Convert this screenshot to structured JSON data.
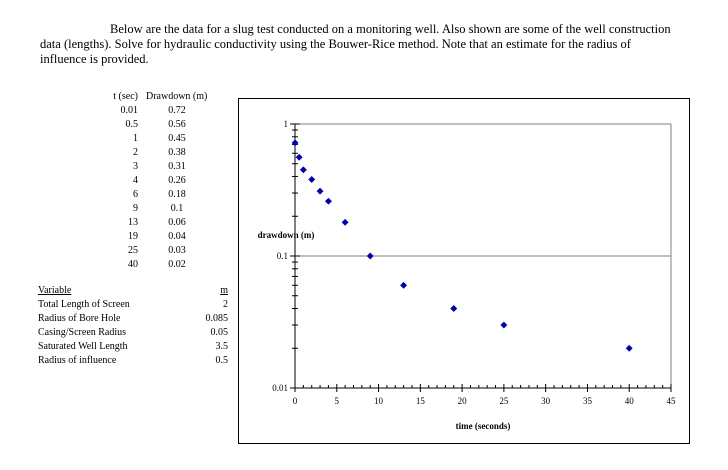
{
  "intro_text": "Below are the data for a slug test conducted on a monitoring well. Also shown are some of the well construction data (lengths). Solve for hydraulic conductivity using the Bouwer-Rice method. Note that an estimate for the radius of influence is provided.",
  "data_table": {
    "headers": {
      "time": "t (sec)",
      "drawdown": "Drawdown (m)"
    },
    "rows": [
      {
        "t": "0.01",
        "d": "0.72"
      },
      {
        "t": "0.5",
        "d": "0.56"
      },
      {
        "t": "1",
        "d": "0.45"
      },
      {
        "t": "2",
        "d": "0.38"
      },
      {
        "t": "3",
        "d": "0.31"
      },
      {
        "t": "4",
        "d": "0.26"
      },
      {
        "t": "6",
        "d": "0.18"
      },
      {
        "t": "9",
        "d": "0.1"
      },
      {
        "t": "13",
        "d": "0.06"
      },
      {
        "t": "19",
        "d": "0.04"
      },
      {
        "t": "25",
        "d": "0.03"
      },
      {
        "t": "40",
        "d": "0.02"
      }
    ]
  },
  "variables": {
    "header_label": "Variable",
    "header_unit": "m",
    "rows": [
      {
        "name": "Total Length of Screen",
        "value": "2"
      },
      {
        "name": "Radius of Bore Hole",
        "value": "0.085"
      },
      {
        "name": "Casing/Screen Radius",
        "value": "0.05"
      },
      {
        "name": "Saturated Well Length",
        "value": "3.5"
      },
      {
        "name": "Radius of influence",
        "value": "0.5"
      }
    ]
  },
  "chart_data": {
    "type": "scatter",
    "xlabel": "time (seconds)",
    "ylabel": "drawdown (m)",
    "xlim": [
      0,
      45
    ],
    "ylim": [
      0.01,
      1
    ],
    "y_scale": "log",
    "x_ticks": [
      "0",
      "5",
      "10",
      "15",
      "20",
      "25",
      "30",
      "35",
      "40",
      "45"
    ],
    "y_ticks": [
      "0.01",
      "0.1",
      "1"
    ],
    "grid": "major horizontal gridlines at 0.1 and 1",
    "legend": "none",
    "marker_color": "#0000aa",
    "points": [
      {
        "x": 0.01,
        "y": 0.72
      },
      {
        "x": 0.5,
        "y": 0.56
      },
      {
        "x": 1,
        "y": 0.45
      },
      {
        "x": 2,
        "y": 0.38
      },
      {
        "x": 3,
        "y": 0.31
      },
      {
        "x": 4,
        "y": 0.26
      },
      {
        "x": 6,
        "y": 0.18
      },
      {
        "x": 9,
        "y": 0.1
      },
      {
        "x": 13,
        "y": 0.06
      },
      {
        "x": 19,
        "y": 0.04
      },
      {
        "x": 25,
        "y": 0.03
      },
      {
        "x": 40,
        "y": 0.02
      }
    ]
  }
}
